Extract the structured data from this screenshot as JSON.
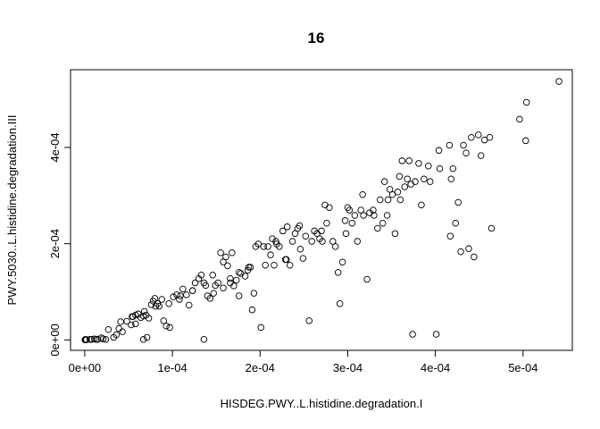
{
  "chart_data": {
    "type": "scatter",
    "title": "16",
    "xlabel": "HISDEG.PWY..L.histidine.degradation.I",
    "ylabel": "PWY.5030..L.histidine.degradation.III",
    "xlim": [
      -1.62e-05,
      0.0005562
    ],
    "ylim": [
      -2.16e-05,
      0.0005616
    ],
    "xticks": [
      0,
      0.0001,
      0.0002,
      0.0003,
      0.0004,
      0.0005
    ],
    "xtick_labels": [
      "0e+00",
      "1e-04",
      "2e-04",
      "3e-04",
      "4e-04",
      "5e-04"
    ],
    "yticks": [
      0,
      0.0002,
      0.0004
    ],
    "ytick_labels": [
      "0e+00",
      "2e-04",
      "4e-04"
    ],
    "grid": false,
    "marker": "open-circle",
    "points": [
      [
        3e-07,
        3e-07
      ],
      [
        8e-07,
        1.1e-06
      ],
      [
        1.3e-06,
        6e-07
      ],
      [
        1.5e-06,
        4e-07
      ],
      [
        2e-06,
        8e-07
      ],
      [
        6e-06,
        1.1e-06
      ],
      [
        8e-06,
        1.1e-06
      ],
      [
        1.1e-05,
        2.1e-06
      ],
      [
        1.5e-05,
        1.1e-06
      ],
      [
        1.9e-05,
        4.3e-06
      ],
      [
        2.1e-05,
        2.1e-06
      ],
      [
        2.4e-05,
        1.1e-06
      ],
      [
        3.3e-05,
        5.4e-06
      ],
      [
        3.6e-05,
        1.07e-05
      ],
      [
        3.9e-05,
        2.37e-05
      ],
      [
        4.3e-05,
        1.72e-05
      ],
      [
        5.3e-05,
        3.13e-05
      ],
      [
        5.8e-05,
        3.34e-05
      ],
      [
        6.7e-05,
        1.1e-06
      ],
      [
        7.1e-05,
        5.4e-06
      ],
      [
        4.8e-05,
        3.88e-05
      ],
      [
        5.5e-05,
        4.86e-05
      ],
      [
        5.8e-05,
        5.18e-05
      ],
      [
        6.1e-05,
        5.4e-05
      ],
      [
        6.4e-05,
        4.64e-05
      ],
      [
        6.7e-05,
        4.97e-05
      ],
      [
        7e-05,
        5.18e-05
      ],
      [
        7.3e-05,
        4.54e-05
      ],
      [
        7.6e-05,
        7.34e-05
      ],
      [
        7.8e-05,
        8.09e-05
      ],
      [
        8e-05,
        8.64e-05
      ],
      [
        8.3e-05,
        7.55e-05
      ],
      [
        8.5e-05,
        7.01e-05
      ],
      [
        8.8e-05,
        8.42e-05
      ],
      [
        9e-05,
        3.99e-05
      ],
      [
        9.3e-05,
        2.91e-05
      ],
      [
        9.7e-05,
        2.59e-05
      ],
      [
        0.000101,
        8.95e-05
      ],
      [
        0.000105,
        9.39e-05
      ],
      [
        0.000108,
        8.42e-05
      ],
      [
        0.000112,
        0.0001058
      ],
      [
        0.000116,
        9.38e-05
      ],
      [
        0.000119,
        7.23e-05
      ],
      [
        0.000123,
        0.0001025
      ],
      [
        0.000126,
        0.0001187
      ],
      [
        0.00013,
        0.0001274
      ],
      [
        0.000133,
        0.0001349
      ],
      [
        0.000136,
        1.1e-06
      ],
      [
        0.000138,
        0.0001133
      ],
      [
        0.00014,
        9.17e-05
      ],
      [
        0.000143,
        8.63e-05
      ],
      [
        0.000146,
        0.0001349
      ],
      [
        0.000149,
        0.0001133
      ],
      [
        0.000152,
        0.0001187
      ],
      [
        0.000155,
        0.0001813
      ],
      [
        0.000158,
        0.0001622
      ],
      [
        0.000161,
        0.0001726
      ],
      [
        0.000163,
        0.0001542
      ],
      [
        0.000166,
        0.0001274
      ],
      [
        0.000168,
        0.0001813
      ],
      [
        0.00017,
        0.0001123
      ],
      [
        0.000173,
        0.0001242
      ],
      [
        0.000176,
        9.17e-05
      ],
      [
        0.000178,
        0.0001381
      ],
      [
        0.000183,
        0.0001326
      ],
      [
        0.000186,
        0.0001448
      ],
      [
        0.000189,
        0.0001512
      ],
      [
        0.000191,
        6.26e-05
      ],
      [
        0.000193,
        9.71e-05
      ],
      [
        0.000195,
        0.0001941
      ],
      [
        0.000198,
        0.0001995
      ],
      [
        0.000201,
        2.59e-05
      ],
      [
        0.000206,
        0.0001554
      ],
      [
        0.000209,
        0.0001941
      ],
      [
        0.000212,
        0.0001768
      ],
      [
        0.000214,
        0.0002103
      ],
      [
        0.000216,
        0.0001554
      ],
      [
        0.000219,
        0.0001995
      ],
      [
        0.000222,
        0.0001941
      ],
      [
        0.000226,
        0.0002265
      ],
      [
        0.000229,
        0.0001672
      ],
      [
        0.000231,
        0.0002351
      ],
      [
        0.000234,
        0.0001554
      ],
      [
        0.000237,
        0.0002049
      ],
      [
        0.00024,
        0.0002211
      ],
      [
        0.000243,
        0.0002319
      ],
      [
        0.000246,
        0.0001888
      ],
      [
        0.000249,
        0.0001695
      ],
      [
        0.000252,
        0.0002157
      ],
      [
        0.000256,
        3.99e-05
      ],
      [
        0.000259,
        0.0002049
      ],
      [
        0.000262,
        0.0002265
      ],
      [
        0.000265,
        0.0002211
      ],
      [
        0.000268,
        0.0002103
      ],
      [
        0.000271,
        0.0002049
      ],
      [
        0.000274,
        0.0002805
      ],
      [
        0.000279,
        0.0002751
      ],
      [
        0.000283,
        0.0002049
      ],
      [
        0.000286,
        0.0001941
      ],
      [
        0.000289,
        0.0001402
      ],
      [
        0.000291,
        7.55e-05
      ],
      [
        0.000294,
        0.0001619
      ],
      [
        0.000297,
        0.0002481
      ],
      [
        0.0003,
        0.0002751
      ],
      [
        0.000302,
        0.0002697
      ],
      [
        0.000305,
        0.0002427
      ],
      [
        0.000308,
        0.0002589
      ],
      [
        0.000311,
        0.0002049
      ],
      [
        0.000315,
        0.0002697
      ],
      [
        0.000318,
        0.0002589
      ],
      [
        0.000322,
        0.0001261
      ],
      [
        0.000325,
        0.0002643
      ],
      [
        0.000329,
        0.0002697
      ],
      [
        0.000334,
        0.0002319
      ],
      [
        0.000337,
        0.0002913
      ],
      [
        0.00034,
        0.0002427
      ],
      [
        0.000342,
        0.0003291
      ],
      [
        0.000345,
        0.0002589
      ],
      [
        0.000348,
        0.0003129
      ],
      [
        0.000351,
        0.0003021
      ],
      [
        0.000354,
        0.0002211
      ],
      [
        0.000357,
        0.0003075
      ],
      [
        0.000359,
        0.0003399
      ],
      [
        0.000362,
        0.0003723
      ],
      [
        0.000365,
        0.0003183
      ],
      [
        0.000368,
        0.0003345
      ],
      [
        0.000372,
        0.0003237
      ],
      [
        0.000374,
        1.19e-05
      ],
      [
        0.000377,
        0.0003291
      ],
      [
        0.000381,
        0.0003669
      ],
      [
        0.000384,
        0.0002805
      ],
      [
        0.000387,
        0.0003345
      ],
      [
        0.000392,
        0.0003615
      ],
      [
        0.000401,
        1.19e-05
      ],
      [
        0.000404,
        0.0003939
      ],
      [
        0.000417,
        0.0002157
      ],
      [
        0.00042,
        0.0003561
      ],
      [
        0.000423,
        0.0002427
      ],
      [
        0.000426,
        0.0002859
      ],
      [
        0.000429,
        0.0001834
      ],
      [
        0.000432,
        0.0004047
      ],
      [
        0.000435,
        0.0003885
      ],
      [
        0.000438,
        0.0001898
      ],
      [
        0.000441,
        0.0004209
      ],
      [
        0.000444,
        0.0001726
      ],
      [
        0.000449,
        0.0004263
      ],
      [
        0.000452,
        0.0003831
      ],
      [
        0.000456,
        0.0004155
      ],
      [
        0.000462,
        0.0004209
      ],
      [
        0.000464,
        0.0002319
      ],
      [
        0.000496,
        0.0004587
      ],
      [
        0.000503,
        0.0004141
      ],
      [
        0.000504,
        0.0004938
      ],
      [
        0.000541,
        0.0005373
      ],
      [
        0.000418,
        0.0003345
      ],
      [
        0.000416,
        0.0004047
      ],
      [
        0.000405,
        0.0003561
      ],
      [
        0.000394,
        0.0003291
      ],
      [
        0.00037,
        0.0003723
      ],
      [
        0.00036,
        0.0002913
      ],
      [
        0.000346,
        0.0002913
      ],
      [
        0.00033,
        0.0002589
      ],
      [
        0.000317,
        0.0003021
      ],
      [
        0.000298,
        0.0002211
      ],
      [
        0.000276,
        0.0002427
      ],
      [
        0.00027,
        0.0002265
      ],
      [
        0.000245,
        0.0002373
      ],
      [
        0.00023,
        0.0001672
      ],
      [
        0.000218,
        0.0002049
      ],
      [
        0.000204,
        0.0001941
      ],
      [
        0.000187,
        0.0001512
      ],
      [
        0.000176,
        0.0001402
      ],
      [
        0.000166,
        0.0001187
      ],
      [
        0.000158,
        0.0001079
      ],
      [
        0.000147,
        9.71e-05
      ],
      [
        0.000136,
        0.0001187
      ],
      [
        0.000123,
        0.0001025
      ],
      [
        0.000109,
        9.17e-05
      ],
      [
        9.6e-05,
        7.55e-05
      ],
      [
        8.1e-05,
        7.01e-05
      ],
      [
        6.8e-05,
        5.93e-05
      ],
      [
        5.4e-05,
        4.86e-05
      ],
      [
        4.1e-05,
        3.78e-05
      ],
      [
        2.7e-05,
        2.16e-05
      ],
      [
        1.3e-05,
        1.1e-06
      ]
    ]
  }
}
